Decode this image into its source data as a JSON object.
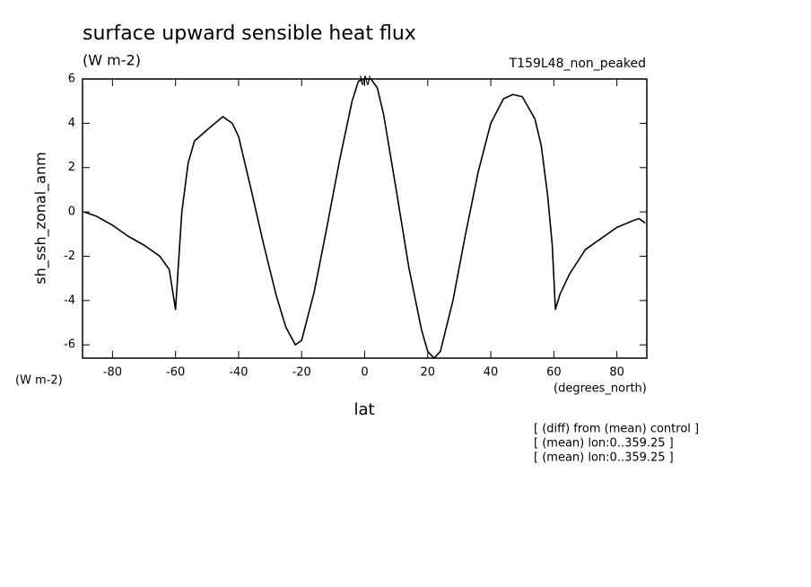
{
  "chart_data": {
    "type": "line",
    "title": "surface upward sensible heat flux",
    "units": "(W m-2)",
    "run_label": "T159L48_non_peaked",
    "y_label": "sh_ssh_zonal_anm",
    "y_units": "(W m-2)",
    "x_units": "(degrees_north)",
    "x_label": "lat",
    "annotation": "W",
    "notes": [
      "[ (diff) from (mean) control ]",
      "[ (mean) lon:0..359.25 ]",
      "[ (mean) lon:0..359.25 ]"
    ],
    "x": [
      -89,
      -85,
      -80,
      -75,
      -70,
      -65,
      -62,
      -60,
      -58,
      -56,
      -54,
      -50,
      -45,
      -42,
      -40,
      -36,
      -32,
      -28,
      -25,
      -22,
      -20,
      -16,
      -12,
      -8,
      -4,
      -2,
      0,
      2,
      4,
      6,
      10,
      14,
      18,
      20,
      22,
      24,
      28,
      32,
      36,
      40,
      44,
      47,
      50,
      54,
      56,
      58,
      59.5,
      60.5,
      62,
      65,
      70,
      75,
      80,
      85,
      87,
      89
    ],
    "series": [
      {
        "name": "sh_ssh_zonal_anm",
        "color": "#000000",
        "values": [
          0,
          -0.2,
          -0.6,
          -1.1,
          -1.5,
          -2.0,
          -2.6,
          -4.4,
          0,
          2.2,
          3.2,
          3.7,
          4.3,
          4.0,
          3.4,
          1.0,
          -1.5,
          -3.8,
          -5.2,
          -6.0,
          -5.8,
          -3.6,
          -0.7,
          2.3,
          5.0,
          5.9,
          6.0,
          6.0,
          5.6,
          4.4,
          1.0,
          -2.5,
          -5.3,
          -6.3,
          -6.6,
          -6.3,
          -4.0,
          -1.0,
          1.8,
          4.0,
          5.1,
          5.3,
          5.2,
          4.2,
          3.0,
          0.8,
          -1.5,
          -4.4,
          -3.7,
          -2.8,
          -1.7,
          -1.2,
          -0.7,
          -0.4,
          -0.3,
          -0.5
        ]
      }
    ],
    "xlim": [
      -89.5,
      89.5
    ],
    "xticks": [
      -80,
      -60,
      -40,
      -20,
      0,
      20,
      40,
      60,
      80
    ],
    "ylim": [
      -6.6,
      6
    ],
    "yticks": [
      -6,
      -4,
      -2,
      0,
      2,
      4,
      6
    ],
    "grid": false
  }
}
